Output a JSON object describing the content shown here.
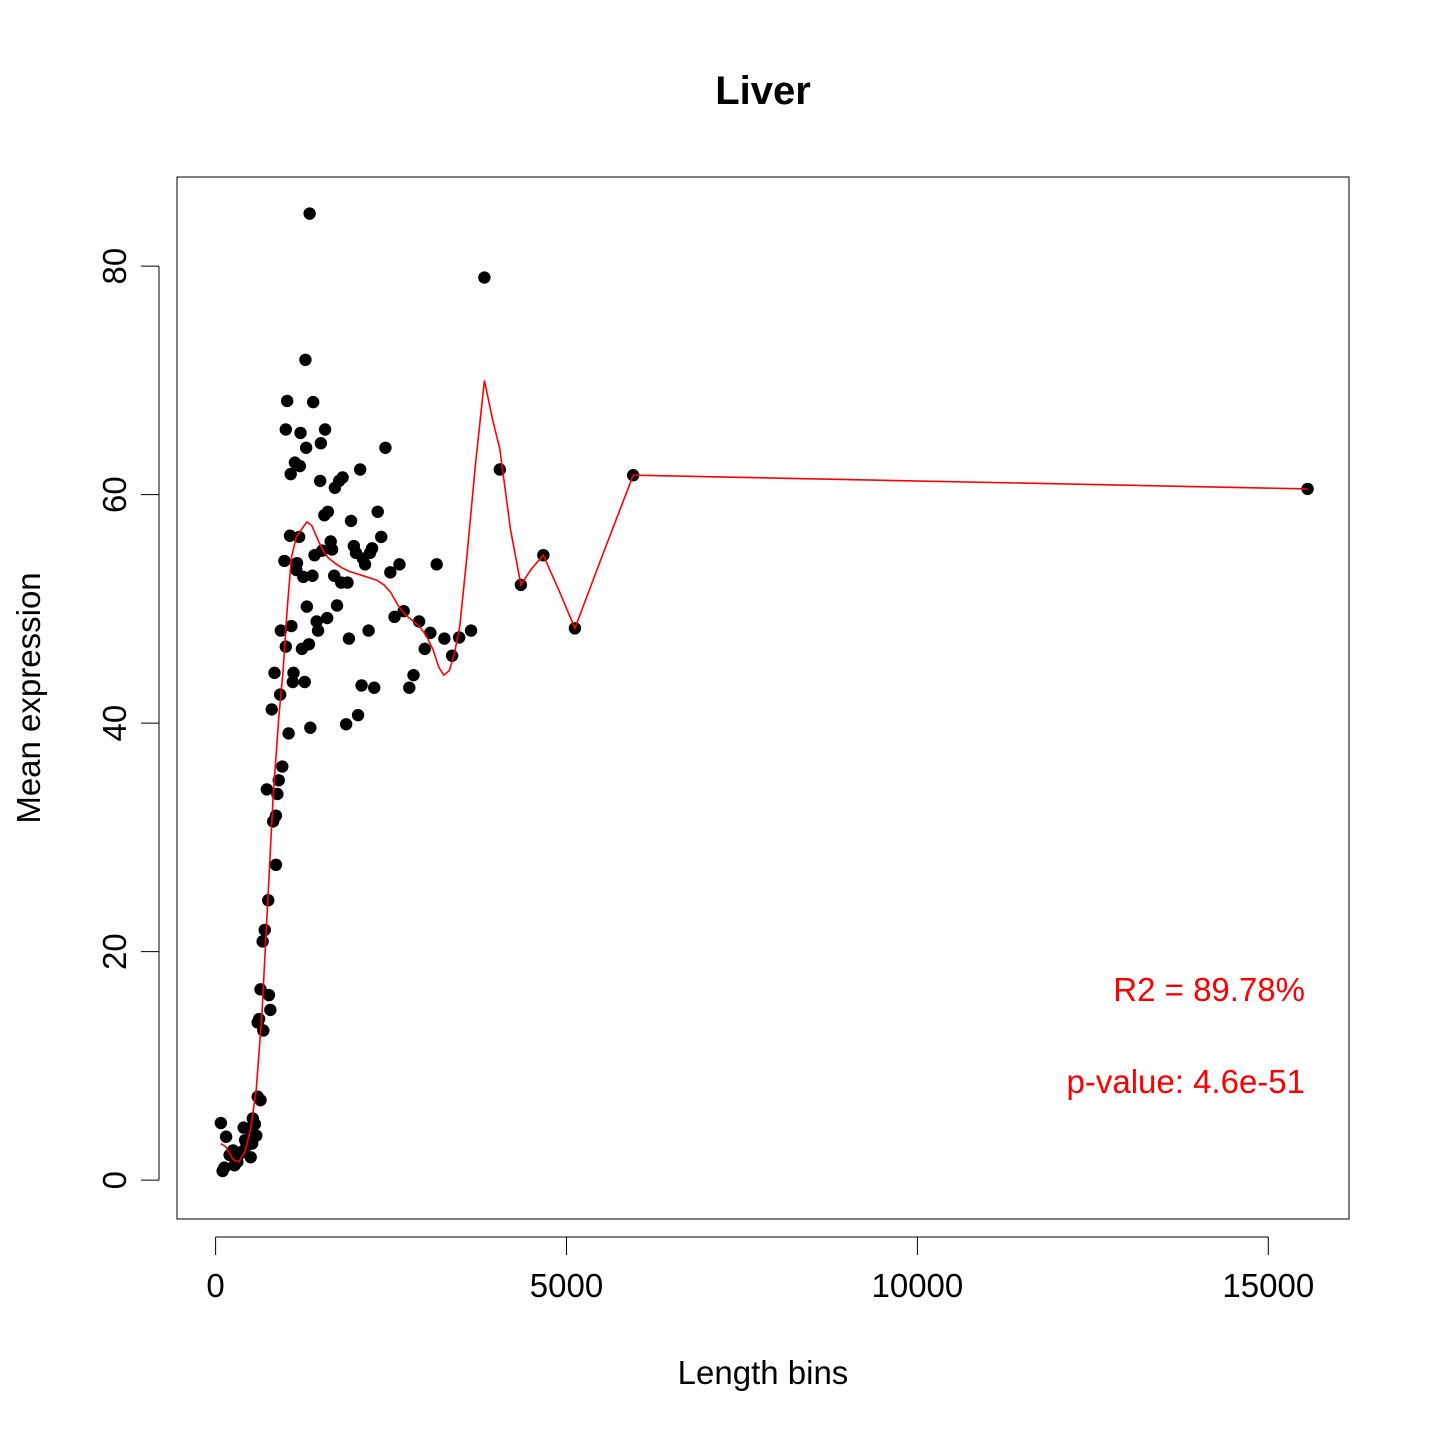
{
  "chart_data": {
    "type": "scatter",
    "title": "Liver",
    "xlabel": "Length bins",
    "ylabel": "Mean expression",
    "xlim": [
      -550,
      16150
    ],
    "ylim": [
      -3.4,
      87.8
    ],
    "x_ticks": [
      0,
      5000,
      10000,
      15000
    ],
    "x_tick_labels": [
      "0",
      "5000",
      "10000",
      "15000"
    ],
    "y_ticks": [
      0,
      20,
      40,
      60,
      80
    ],
    "y_tick_labels": [
      "0",
      "20",
      "40",
      "60",
      "80"
    ],
    "grid": false,
    "legend": "none",
    "colors": {
      "points": "#000000",
      "fit_line": "#ff0000",
      "annotations": "#ff0000",
      "frame": "#000000"
    },
    "annotations": {
      "r2": "R2 = 89.78%",
      "pvalue": "p-value: 4.6e-51"
    },
    "points": [
      [
        75,
        5.0
      ],
      [
        100,
        0.8
      ],
      [
        125,
        1.1
      ],
      [
        150,
        3.8
      ],
      [
        200,
        2.2
      ],
      [
        250,
        2.6
      ],
      [
        270,
        1.3
      ],
      [
        310,
        1.6
      ],
      [
        340,
        2.3
      ],
      [
        380,
        2.5
      ],
      [
        400,
        4.6
      ],
      [
        420,
        3.5
      ],
      [
        440,
        3.0
      ],
      [
        480,
        4.5
      ],
      [
        500,
        2.0
      ],
      [
        520,
        3.2
      ],
      [
        530,
        5.4
      ],
      [
        560,
        4.9
      ],
      [
        580,
        3.9
      ],
      [
        600,
        7.3
      ],
      [
        640,
        7.0
      ],
      [
        600,
        13.8
      ],
      [
        620,
        14.1
      ],
      [
        640,
        16.7
      ],
      [
        680,
        13.1
      ],
      [
        670,
        20.9
      ],
      [
        700,
        21.9
      ],
      [
        730,
        34.2
      ],
      [
        750,
        24.5
      ],
      [
        760,
        16.2
      ],
      [
        780,
        14.9
      ],
      [
        800,
        41.2
      ],
      [
        820,
        31.4
      ],
      [
        840,
        44.4
      ],
      [
        860,
        27.6
      ],
      [
        860,
        31.9
      ],
      [
        880,
        33.8
      ],
      [
        900,
        35.0
      ],
      [
        920,
        42.5
      ],
      [
        930,
        48.1
      ],
      [
        950,
        36.2
      ],
      [
        980,
        54.2
      ],
      [
        1000,
        46.7
      ],
      [
        1000,
        65.7
      ],
      [
        1020,
        68.2
      ],
      [
        1040,
        39.1
      ],
      [
        1060,
        56.4
      ],
      [
        1070,
        61.8
      ],
      [
        1080,
        48.5
      ],
      [
        1100,
        43.6
      ],
      [
        1110,
        44.4
      ],
      [
        1130,
        62.8
      ],
      [
        1150,
        53.4
      ],
      [
        1160,
        54.0
      ],
      [
        1190,
        56.3
      ],
      [
        1200,
        62.5
      ],
      [
        1210,
        65.4
      ],
      [
        1230,
        46.5
      ],
      [
        1250,
        52.8
      ],
      [
        1270,
        43.6
      ],
      [
        1280,
        71.8
      ],
      [
        1290,
        64.1
      ],
      [
        1300,
        50.2
      ],
      [
        1330,
        46.9
      ],
      [
        1350,
        39.6
      ],
      [
        1340,
        84.6
      ],
      [
        1380,
        52.9
      ],
      [
        1390,
        68.1
      ],
      [
        1410,
        54.7
      ],
      [
        1440,
        48.9
      ],
      [
        1460,
        48.1
      ],
      [
        1490,
        61.2
      ],
      [
        1500,
        64.5
      ],
      [
        1520,
        55.1
      ],
      [
        1550,
        58.2
      ],
      [
        1560,
        65.7
      ],
      [
        1590,
        49.2
      ],
      [
        1600,
        58.5
      ],
      [
        1640,
        55.9
      ],
      [
        1660,
        55.2
      ],
      [
        1690,
        52.9
      ],
      [
        1700,
        60.6
      ],
      [
        1730,
        50.3
      ],
      [
        1760,
        61.2
      ],
      [
        1790,
        52.3
      ],
      [
        1810,
        61.5
      ],
      [
        1860,
        39.9
      ],
      [
        1880,
        52.3
      ],
      [
        1900,
        47.4
      ],
      [
        1930,
        57.7
      ],
      [
        1970,
        55.5
      ],
      [
        2000,
        54.9
      ],
      [
        2030,
        40.7
      ],
      [
        2060,
        62.2
      ],
      [
        2080,
        43.3
      ],
      [
        2100,
        54.4
      ],
      [
        2130,
        53.9
      ],
      [
        2180,
        48.1
      ],
      [
        2200,
        54.9
      ],
      [
        2230,
        55.3
      ],
      [
        2260,
        43.1
      ],
      [
        2310,
        58.5
      ],
      [
        2360,
        56.3
      ],
      [
        2420,
        64.1
      ],
      [
        2490,
        53.2
      ],
      [
        2550,
        49.3
      ],
      [
        2620,
        53.9
      ],
      [
        2680,
        49.8
      ],
      [
        2760,
        43.1
      ],
      [
        2820,
        44.2
      ],
      [
        2900,
        48.9
      ],
      [
        2980,
        46.5
      ],
      [
        3060,
        47.9
      ],
      [
        3150,
        53.9
      ],
      [
        3260,
        47.4
      ],
      [
        3370,
        45.9
      ],
      [
        3470,
        47.5
      ],
      [
        3640,
        48.1
      ],
      [
        3830,
        79.0
      ],
      [
        4050,
        62.2
      ],
      [
        4350,
        52.1
      ],
      [
        4670,
        54.7
      ],
      [
        5120,
        48.3
      ],
      [
        5950,
        61.7
      ],
      [
        15560,
        60.5
      ]
    ],
    "fit_line": [
      [
        75,
        3.2
      ],
      [
        150,
        2.9
      ],
      [
        250,
        1.8
      ],
      [
        330,
        1.6
      ],
      [
        420,
        2.5
      ],
      [
        500,
        4.5
      ],
      [
        580,
        8.0
      ],
      [
        660,
        14.5
      ],
      [
        740,
        24.0
      ],
      [
        820,
        33.5
      ],
      [
        900,
        40.5
      ],
      [
        960,
        44.5
      ],
      [
        1020,
        50.0
      ],
      [
        1080,
        54.5
      ],
      [
        1150,
        56.3
      ],
      [
        1230,
        57.0
      ],
      [
        1300,
        57.6
      ],
      [
        1370,
        57.3
      ],
      [
        1440,
        56.3
      ],
      [
        1520,
        55.2
      ],
      [
        1600,
        54.5
      ],
      [
        1700,
        54.0
      ],
      [
        1800,
        53.6
      ],
      [
        1900,
        53.3
      ],
      [
        2000,
        53.1
      ],
      [
        2100,
        52.9
      ],
      [
        2200,
        52.7
      ],
      [
        2300,
        52.5
      ],
      [
        2400,
        52.1
      ],
      [
        2500,
        51.4
      ],
      [
        2600,
        50.3
      ],
      [
        2700,
        49.5
      ],
      [
        2800,
        49.0
      ],
      [
        2900,
        48.5
      ],
      [
        3000,
        47.7
      ],
      [
        3100,
        46.4
      ],
      [
        3180,
        44.9
      ],
      [
        3250,
        44.2
      ],
      [
        3330,
        44.6
      ],
      [
        3400,
        46.0
      ],
      [
        3480,
        48.5
      ],
      [
        3580,
        54.5
      ],
      [
        3700,
        62.5
      ],
      [
        3830,
        70.0
      ],
      [
        3950,
        66.5
      ],
      [
        4050,
        64.0
      ],
      [
        4200,
        57.0
      ],
      [
        4350,
        52.1
      ],
      [
        4500,
        53.5
      ],
      [
        4670,
        54.7
      ],
      [
        4900,
        51.5
      ],
      [
        5120,
        48.3
      ],
      [
        5500,
        54.5
      ],
      [
        5950,
        61.7
      ],
      [
        15560,
        60.5
      ]
    ]
  }
}
